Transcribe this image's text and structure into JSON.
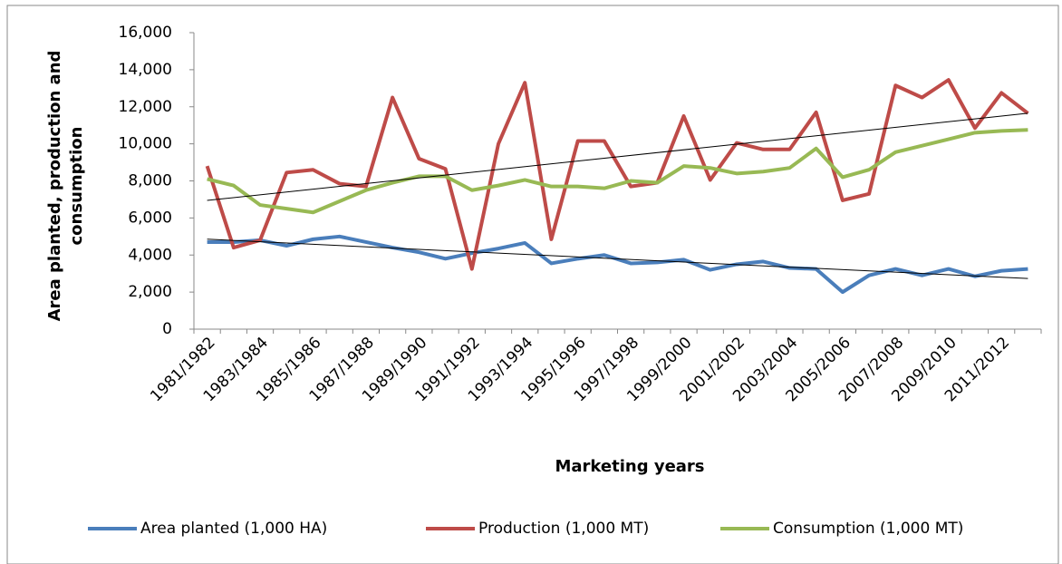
{
  "chart_data": {
    "type": "line",
    "x_label": "Marketing years",
    "y_label": "Area planted, production and consumption",
    "categories": [
      "1981/1982",
      null,
      "1983/1984",
      null,
      "1985/1986",
      null,
      "1987/1988",
      null,
      "1989/1990",
      null,
      "1991/1992",
      null,
      "1993/1994",
      null,
      "1995/1996",
      null,
      "1997/1998",
      null,
      "1999/2000",
      null,
      "2001/2002",
      null,
      "2003/2004",
      null,
      "2005/2006",
      null,
      "2007/2008",
      null,
      "2009/2010",
      null,
      "2011/2012",
      null
    ],
    "series": [
      {
        "name": "Area planted (1,000 HA)",
        "color": "#4a7ebb",
        "trendline": true,
        "values": [
          4700,
          4700,
          4800,
          4500,
          4850,
          5000,
          4700,
          4400,
          4150,
          3800,
          4100,
          4350,
          4650,
          3550,
          3800,
          4000,
          3550,
          3600,
          3750,
          3200,
          3500,
          3650,
          3300,
          3250,
          2000,
          2900,
          3250,
          2900,
          3250,
          2850,
          3150,
          3250
        ]
      },
      {
        "name": "Production (1,000 MT)",
        "color": "#be4b48",
        "trendline": true,
        "values": [
          8800,
          4400,
          4800,
          8450,
          8600,
          7850,
          7700,
          12500,
          9200,
          8650,
          3250,
          10000,
          13300,
          4850,
          10150,
          10150,
          7700,
          7900,
          11500,
          8050,
          10050,
          9700,
          9700,
          11700,
          6950,
          7300,
          13150,
          12500,
          13450,
          10850,
          12750,
          11650
        ]
      },
      {
        "name": "Consumption (1,000 MT)",
        "color": "#98b954",
        "trendline": false,
        "values": [
          8100,
          7750,
          6700,
          6500,
          6300,
          6900,
          7500,
          7900,
          8250,
          8250,
          7500,
          7750,
          8050,
          7700,
          7700,
          7600,
          8000,
          7900,
          8800,
          8700,
          8400,
          8500,
          8700,
          9750,
          8200,
          8600,
          9550,
          9900,
          10250,
          10600,
          10700,
          10750
        ]
      }
    ],
    "ylim": [
      0,
      16000
    ],
    "yticks": [
      0,
      {
        "value": 2000,
        "label": "2,000"
      },
      {
        "value": 4000,
        "label": "4,000"
      },
      {
        "value": 6000,
        "label": "6,000"
      },
      {
        "value": 8000,
        "label": "8,000"
      },
      {
        "value": 10000,
        "label": "10,000"
      },
      {
        "value": 12000,
        "label": "12,000"
      },
      {
        "value": 14000,
        "label": "14,000"
      },
      {
        "value": 16000,
        "label": "16,000"
      }
    ],
    "legend": "bottom"
  }
}
